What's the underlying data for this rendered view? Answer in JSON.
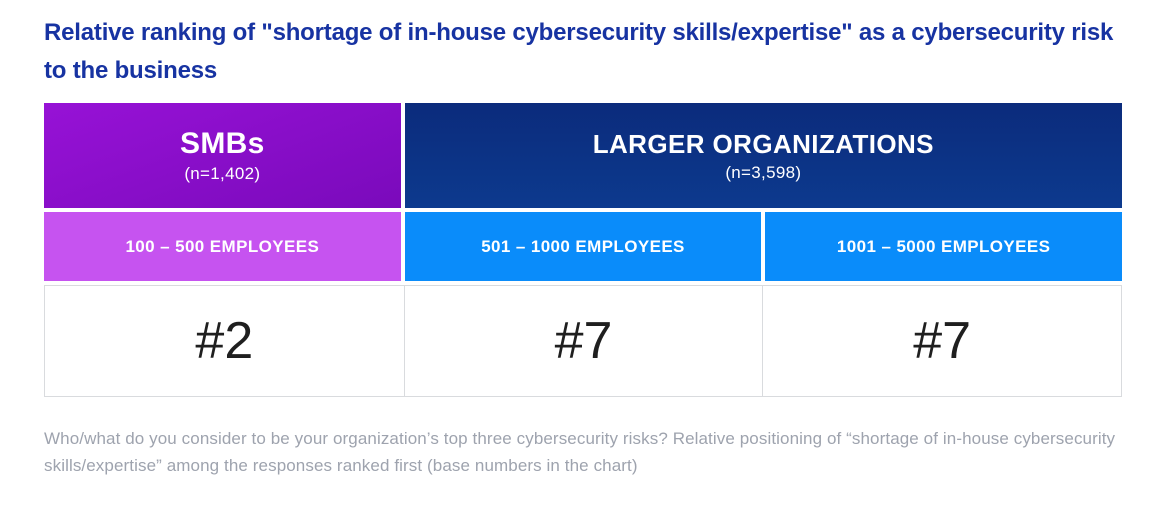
{
  "title": "Relative ranking of \"shortage of in-house cybersecurity skills/expertise\" as a cybersecurity risk to the business",
  "footnote": "Who/what do you consider to be your organization’s top three cybersecurity risks? Relative positioning of “shortage of in-house cybersecurity skills/expertise” among the responses ranked first (base numbers in the chart)",
  "colors": {
    "title_blue": "#1733A2",
    "smb_purple_start": "#9712D6",
    "smb_purple_end": "#7A0ABB",
    "larger_navy_start": "#0B2B7C",
    "larger_navy_end": "#0D3A8E",
    "sub_magenta": "#C653F0",
    "sub_blue": "#0A8CFA",
    "footnote_gray": "#9EA3AE",
    "cell_border": "#D9DBDE"
  },
  "chart_data": {
    "type": "table",
    "title": "Relative ranking of \"shortage of in-house cybersecurity skills/expertise\" as a cybersecurity risk to the business",
    "column_groups": [
      {
        "label": "SMBs",
        "sample_size_label": "(n=1,402)",
        "sample_n": 1402,
        "columns_spanned": 1
      },
      {
        "label": "LARGER ORGANIZATIONS",
        "sample_size_label": "(n=3,598)",
        "sample_n": 3598,
        "columns_spanned": 2
      }
    ],
    "categories": [
      "100 – 500 EMPLOYEES",
      "501 – 1000 EMPLOYEES",
      "1001 – 5000 EMPLOYEES"
    ],
    "values": [
      "#2",
      "#7",
      "#7"
    ],
    "ranks_numeric": [
      2,
      7,
      7
    ],
    "footnote": "Who/what do you consider to be your organization’s top three cybersecurity risks? Relative positioning of “shortage of in-house cybersecurity skills/expertise” among the responses ranked first (base numbers in the chart)"
  }
}
